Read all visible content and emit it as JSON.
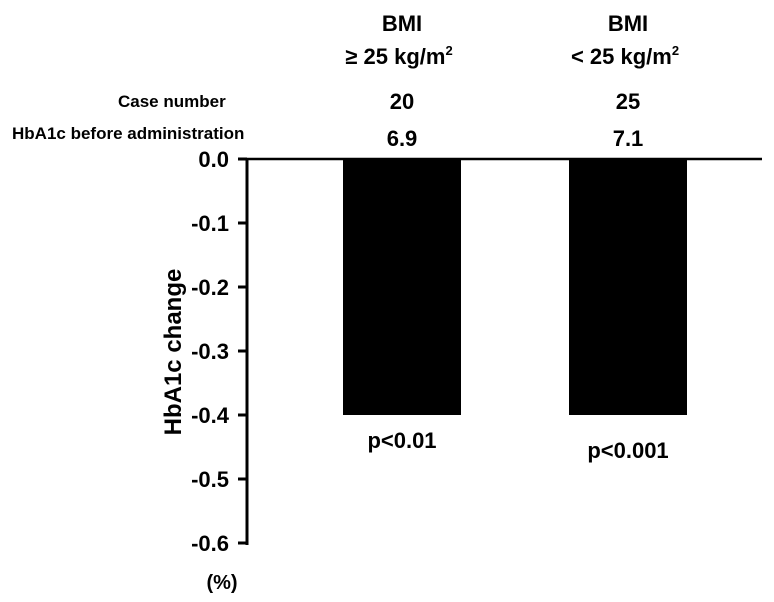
{
  "chart_data": {
    "type": "bar",
    "categories": [
      "BMI ≥ 25 kg/m²",
      "BMI < 25 kg/m²"
    ],
    "groups": [
      {
        "line1": "BMI",
        "line2": "≥ 25 kg/m",
        "sup": "2",
        "case_number": "20",
        "hba1c_before": "6.9",
        "p_label": "p<0.01"
      },
      {
        "line1": "BMI",
        "line2": "< 25 kg/m",
        "sup": "2",
        "case_number": "25",
        "hba1c_before": "7.1",
        "p_label": "p<0.001"
      }
    ],
    "values": [
      -0.4,
      -0.4
    ],
    "ylabel": "HbA1c change",
    "unit": "(%)",
    "ylim": [
      -0.6,
      0.0
    ],
    "yticks": [
      "0.0",
      "-0.1",
      "-0.2",
      "-0.3",
      "-0.4",
      "-0.5",
      "-0.6"
    ],
    "row_labels": {
      "case_number": "Case number",
      "hba1c_before": "HbA1c  before administration"
    },
    "bar_color": "#000000",
    "grid": false
  }
}
